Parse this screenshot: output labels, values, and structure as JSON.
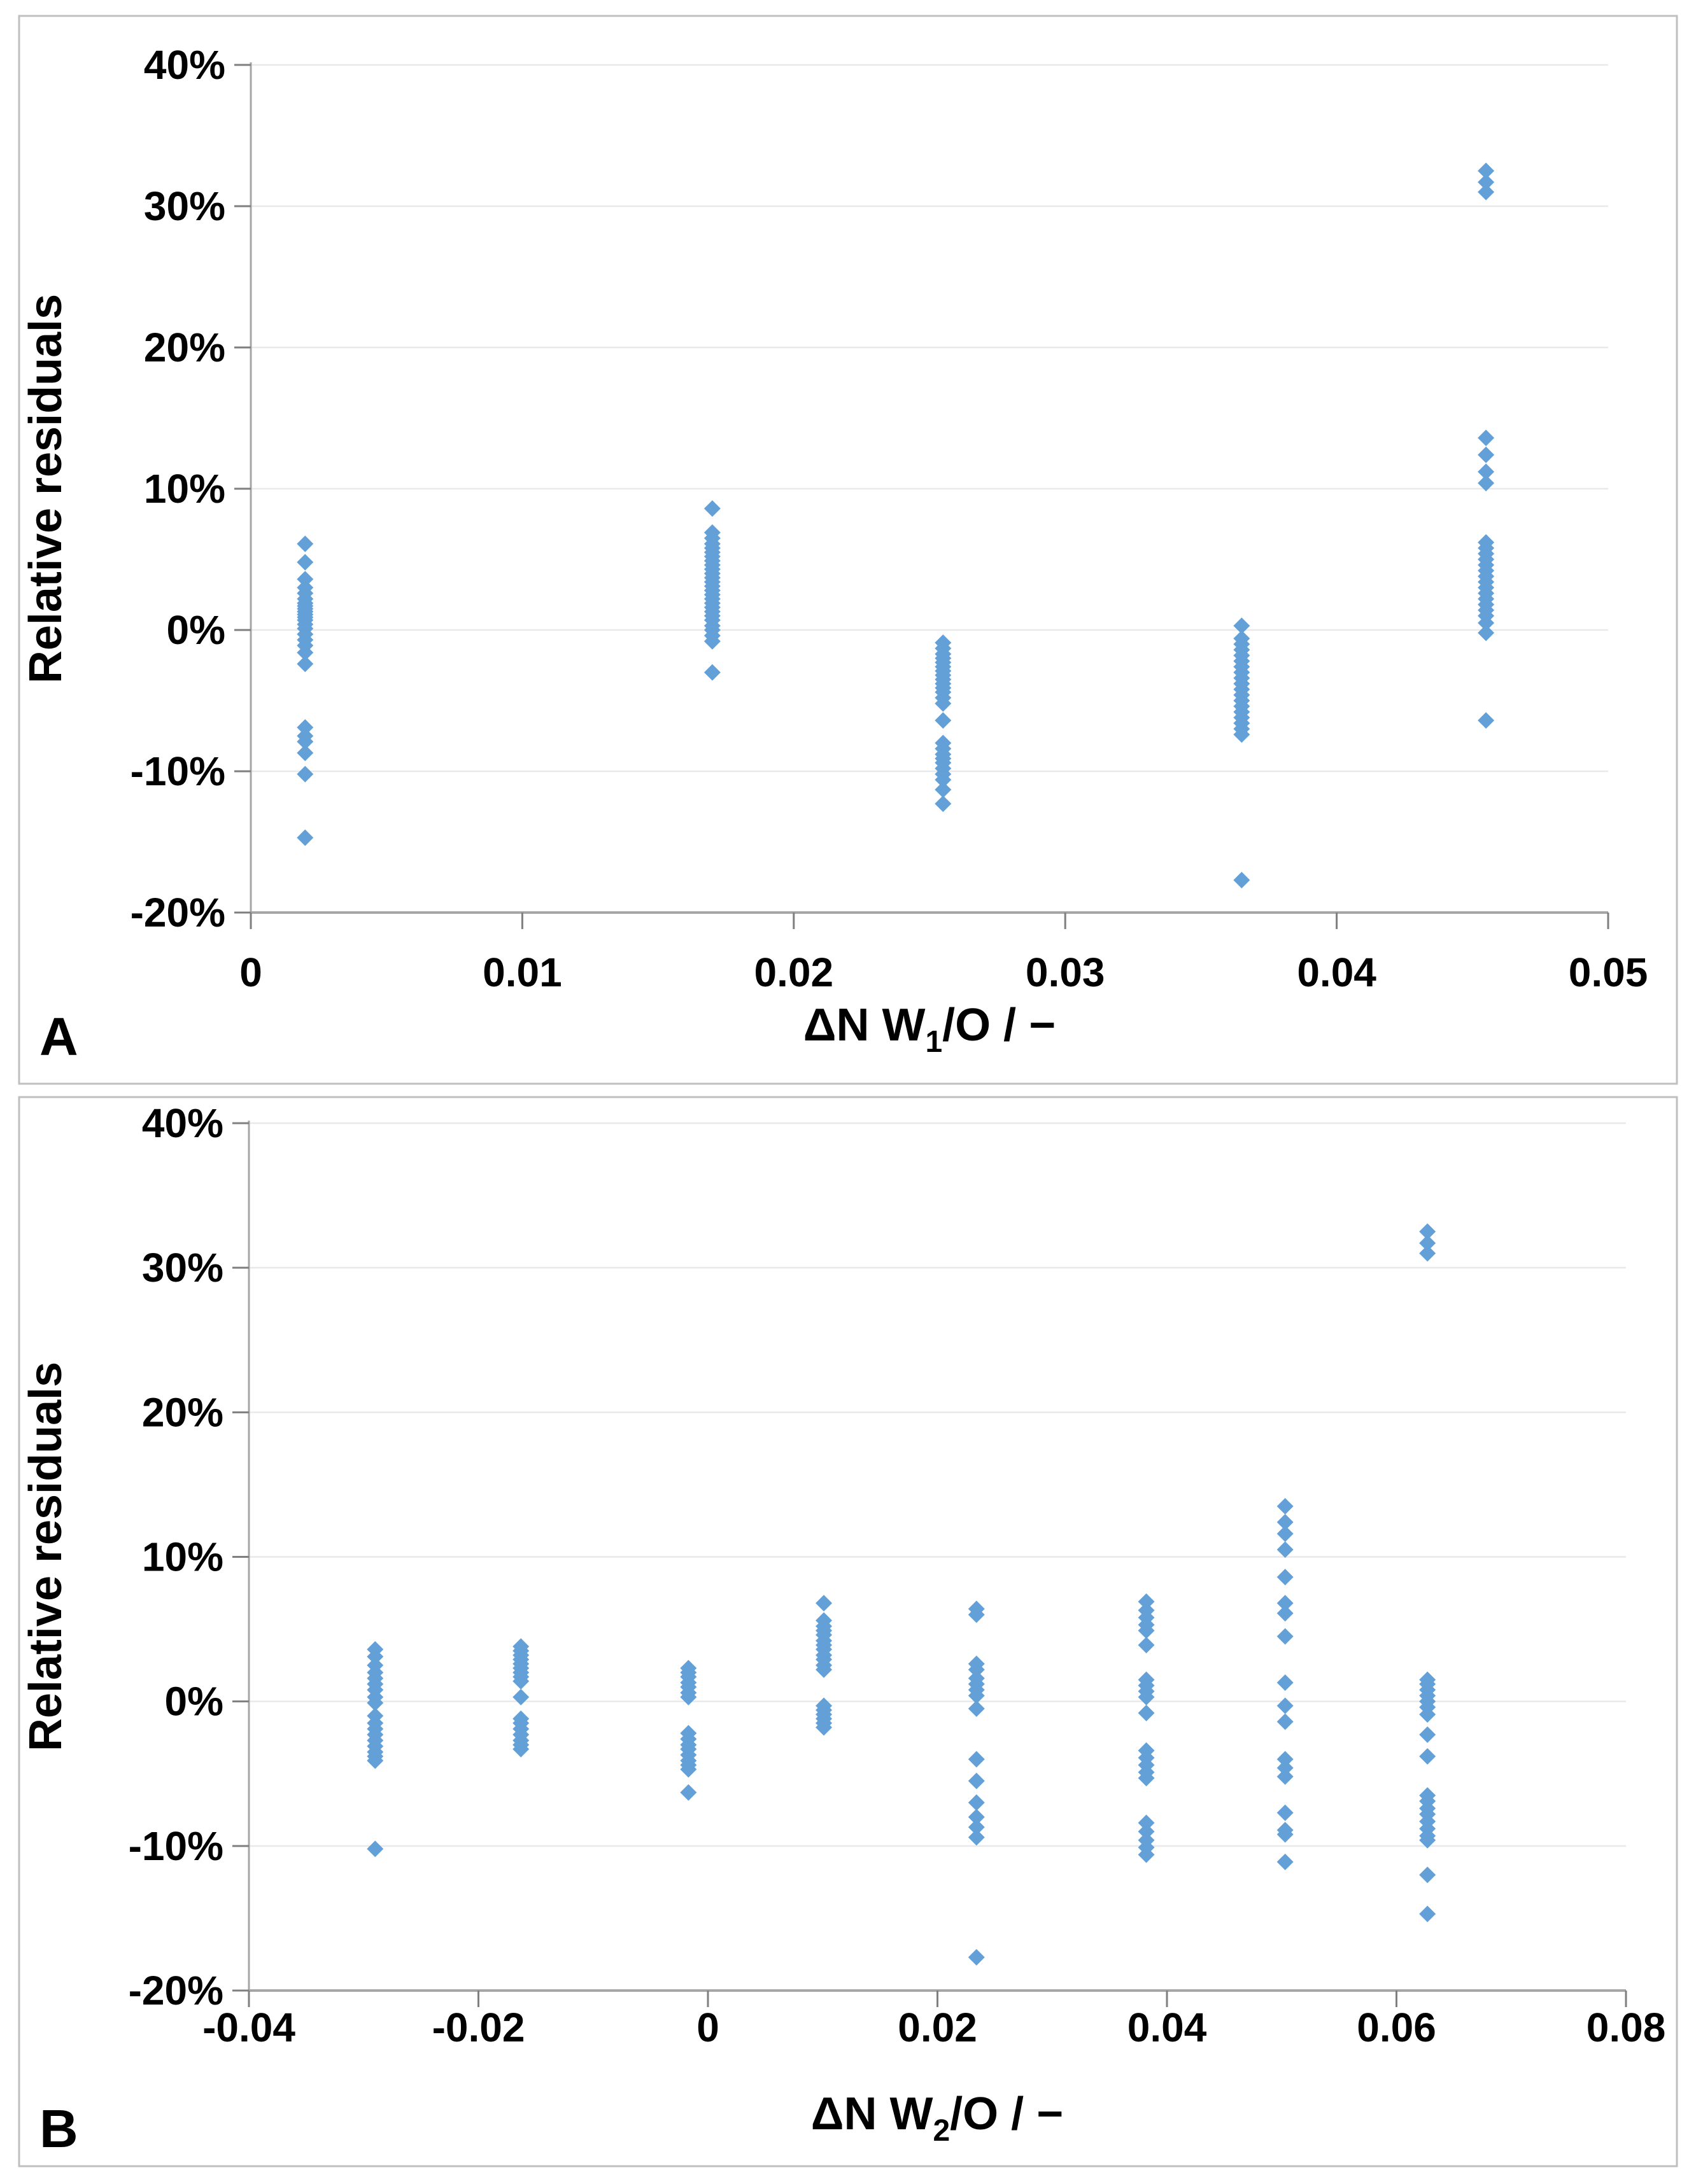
{
  "style": {
    "marker_color": "#5B9BD5",
    "axis_color": "#A6A6A6",
    "tick_color": "#7F7F7F",
    "gridline_color": "#E9E9E9",
    "border_color": "#BFBFBF",
    "text_color": "#000000",
    "background": "#FFFFFF"
  },
  "chart_data": [
    {
      "panel": "A",
      "type": "scatter",
      "ylabel": "Relative residuals",
      "xlabel": {
        "prefix": "ΔN W",
        "sub": "1",
        "suffix": "/O / −"
      },
      "xlim": [
        0,
        0.05
      ],
      "ylim": [
        -20,
        40
      ],
      "grid": "horizontal-only",
      "legend": "none",
      "marker": {
        "shape": "diamond",
        "size_half_diagonal": 13
      },
      "x_ticks": {
        "values": [
          0,
          0.01,
          0.02,
          0.03,
          0.04,
          0.05
        ],
        "labels": [
          "0",
          "0.01",
          "0.02",
          "0.03",
          "0.04",
          "0.05"
        ]
      },
      "y_ticks": {
        "values": [
          40,
          30,
          20,
          10,
          0,
          -10,
          -20
        ],
        "labels": [
          "40%",
          "30%",
          "20%",
          "10%",
          "0%",
          "-10%",
          "-20%"
        ]
      },
      "clusters": [
        {
          "x": 0.002,
          "residuals_pct": [
            6.1,
            4.8,
            3.6,
            3.0,
            2.6,
            2.2,
            1.9,
            1.7,
            1.5,
            1.3,
            1.1,
            0.9,
            0.7,
            0.4,
            0.1,
            -0.3,
            -0.7,
            -1.1,
            -1.6,
            -2.4,
            -6.9,
            -7.5,
            -7.9,
            -8.7,
            -10.2,
            -14.7
          ]
        },
        {
          "x": 0.017,
          "residuals_pct": [
            8.6,
            6.9,
            6.5,
            6.1,
            5.8,
            5.5,
            5.2,
            4.9,
            4.6,
            4.3,
            4.0,
            3.7,
            3.4,
            3.1,
            2.8,
            2.5,
            2.2,
            1.9,
            1.6,
            1.3,
            1.0,
            0.7,
            0.3,
            0.0,
            -0.4,
            -0.8,
            -3.0
          ]
        },
        {
          "x": 0.0255,
          "residuals_pct": [
            -0.9,
            -1.3,
            -1.7,
            -2.0,
            -2.3,
            -2.6,
            -2.9,
            -3.2,
            -3.5,
            -3.8,
            -4.1,
            -4.4,
            -4.8,
            -5.2,
            -6.4,
            -8.0,
            -8.4,
            -8.8,
            -9.1,
            -9.4,
            -9.8,
            -10.2,
            -10.6,
            -11.3,
            -12.3
          ]
        },
        {
          "x": 0.0365,
          "residuals_pct": [
            0.3,
            -0.6,
            -1.0,
            -1.4,
            -1.8,
            -2.2,
            -2.6,
            -3.0,
            -3.4,
            -3.8,
            -4.2,
            -4.6,
            -5.0,
            -5.4,
            -5.8,
            -6.2,
            -6.6,
            -7.0,
            -7.4,
            -17.7
          ]
        },
        {
          "x": 0.0455,
          "residuals_pct": [
            32.5,
            31.7,
            31.0,
            13.6,
            12.4,
            11.2,
            10.4,
            6.2,
            5.8,
            5.4,
            5.0,
            4.6,
            4.2,
            3.8,
            3.4,
            3.0,
            2.6,
            2.2,
            1.8,
            1.4,
            1.0,
            0.5,
            -0.2,
            -6.4
          ]
        }
      ]
    },
    {
      "panel": "B",
      "type": "scatter",
      "ylabel": "Relative residuals",
      "xlabel": {
        "prefix": "ΔN W",
        "sub": "2",
        "suffix": "/O / −"
      },
      "xlim": [
        -0.04,
        0.08
      ],
      "ylim": [
        -20,
        40
      ],
      "grid": "horizontal-only",
      "legend": "none",
      "marker": {
        "shape": "diamond",
        "size_half_diagonal": 13
      },
      "x_ticks": {
        "values": [
          -0.04,
          -0.02,
          0,
          0.02,
          0.04,
          0.06,
          0.08
        ],
        "labels": [
          "-0.04",
          "-0.02",
          "0",
          "0.02",
          "0.04",
          "0.06",
          "0.08"
        ]
      },
      "y_ticks": {
        "values": [
          40,
          30,
          20,
          10,
          0,
          -10,
          -20
        ],
        "labels": [
          "40%",
          "30%",
          "20%",
          "10%",
          "0%",
          "-10%",
          "-20%"
        ]
      },
      "clusters": [
        {
          "x": -0.029,
          "residuals_pct": [
            3.6,
            3.1,
            2.5,
            2.0,
            1.6,
            1.2,
            0.8,
            0.3,
            -0.1,
            -1.0,
            -1.5,
            -1.9,
            -2.3,
            -2.7,
            -3.1,
            -3.5,
            -3.8,
            -4.1,
            -10.2
          ]
        },
        {
          "x": -0.0163,
          "residuals_pct": [
            3.8,
            3.5,
            3.2,
            2.9,
            2.6,
            2.3,
            2.0,
            1.7,
            1.4,
            0.3,
            -1.2,
            -1.5,
            -1.9,
            -2.3,
            -2.7,
            -3.0,
            -3.3
          ]
        },
        {
          "x": -0.0017,
          "residuals_pct": [
            2.3,
            2.0,
            1.7,
            1.3,
            1.0,
            0.6,
            0.3,
            -2.2,
            -2.6,
            -3.0,
            -3.3,
            -3.7,
            -4.1,
            -4.4,
            -4.7,
            -6.3
          ]
        },
        {
          "x": 0.0101,
          "residuals_pct": [
            6.8,
            5.6,
            5.2,
            4.9,
            4.6,
            4.2,
            3.9,
            3.6,
            3.2,
            2.9,
            2.5,
            2.2,
            -0.3,
            -0.6,
            -0.9,
            -1.2,
            -1.5,
            -1.8
          ]
        },
        {
          "x": 0.0234,
          "residuals_pct": [
            6.4,
            6.0,
            2.6,
            2.2,
            1.6,
            1.2,
            0.8,
            0.4,
            -0.5,
            -4.0,
            -5.5,
            -7.0,
            -8.0,
            -8.7,
            -9.4,
            -17.7
          ]
        },
        {
          "x": 0.0382,
          "residuals_pct": [
            6.9,
            6.3,
            5.8,
            5.3,
            4.9,
            3.9,
            1.5,
            1.1,
            0.7,
            0.3,
            -0.8,
            -3.4,
            -3.9,
            -4.4,
            -4.9,
            -5.3,
            -8.4,
            -9.0,
            -9.6,
            -10.1,
            -10.6
          ]
        },
        {
          "x": 0.0503,
          "residuals_pct": [
            13.5,
            12.4,
            11.6,
            10.5,
            8.6,
            6.8,
            6.1,
            4.5,
            1.3,
            -0.3,
            -1.4,
            -4.0,
            -4.6,
            -5.2,
            -7.7,
            -8.9,
            -9.2,
            -11.1
          ]
        },
        {
          "x": 0.0627,
          "residuals_pct": [
            32.5,
            31.7,
            31.0,
            1.5,
            1.2,
            0.8,
            0.4,
            0.0,
            -0.4,
            -0.9,
            -2.3,
            -3.8,
            -6.5,
            -6.9,
            -7.4,
            -7.8,
            -8.3,
            -8.8,
            -9.3,
            -9.6,
            -12.0,
            -14.7
          ]
        }
      ]
    }
  ]
}
